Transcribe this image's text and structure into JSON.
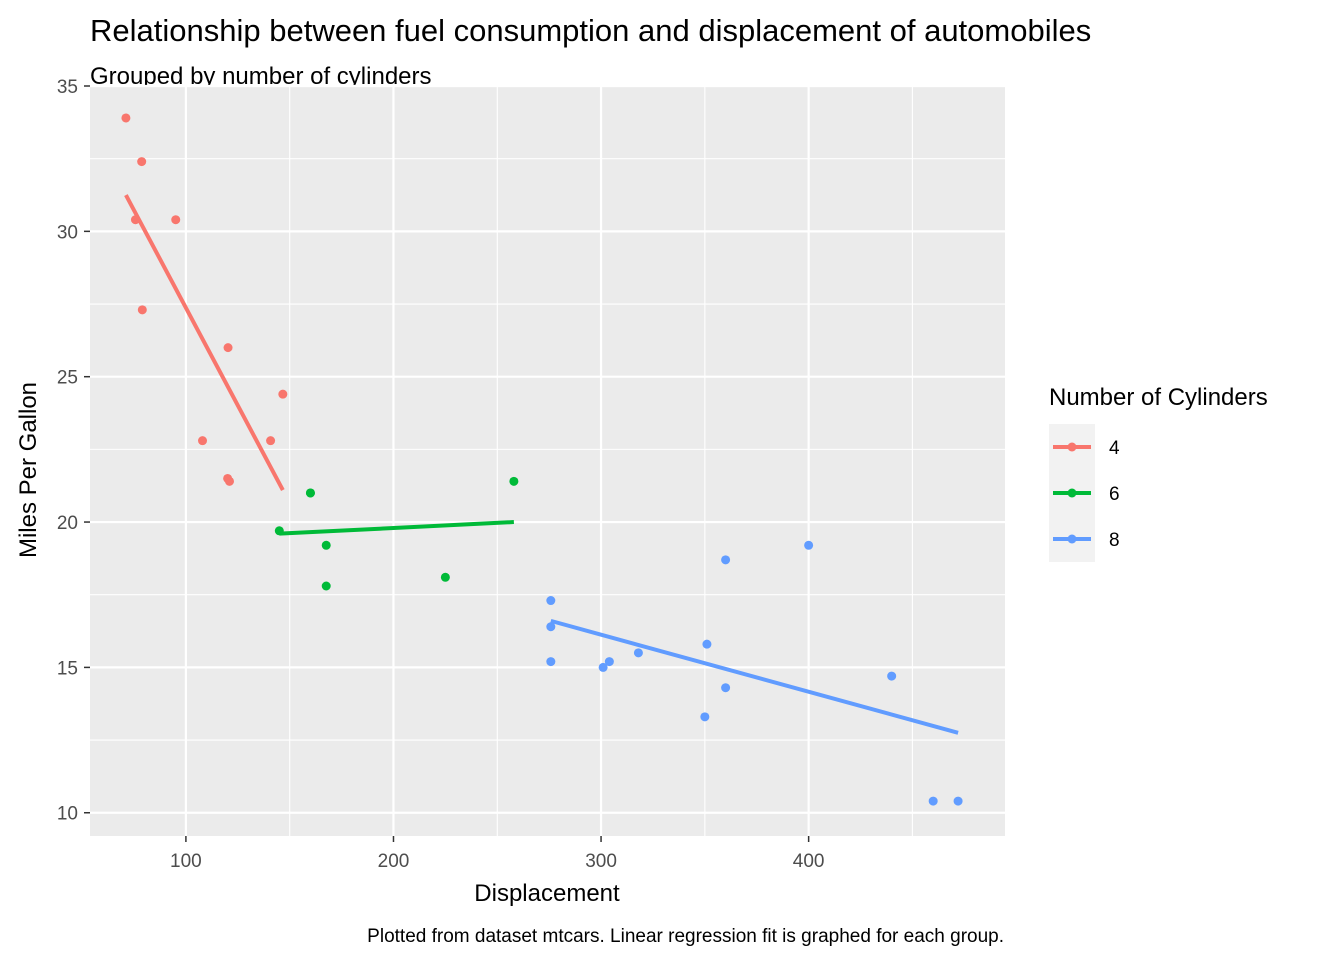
{
  "chart_data": {
    "type": "scatter",
    "title": "Relationship between fuel consumption and displacement of automobiles",
    "subtitle": "Grouped by number of cylinders",
    "xlabel": "Displacement",
    "ylabel": "Miles Per Gallon",
    "caption": "Plotted from dataset mtcars. Linear regression fit is graphed for each group.",
    "xlim": [
      53.8,
      494.6
    ],
    "ylim": [
      9.2,
      35.0
    ],
    "xticks": [
      100,
      200,
      300,
      400
    ],
    "yticks": [
      10,
      15,
      20,
      25,
      30,
      35
    ],
    "grid": true,
    "legend": {
      "title": "Number of Cylinders",
      "position": "right"
    },
    "series": [
      {
        "name": "4",
        "color": "#F8766D",
        "points": [
          [
            71.1,
            33.9
          ],
          [
            78.7,
            32.4
          ],
          [
            75.7,
            30.4
          ],
          [
            95.1,
            30.4
          ],
          [
            79.0,
            27.3
          ],
          [
            120.3,
            26.0
          ],
          [
            146.7,
            24.4
          ],
          [
            108.0,
            22.8
          ],
          [
            140.8,
            22.8
          ],
          [
            120.1,
            21.5
          ],
          [
            121.0,
            21.4
          ]
        ],
        "fit": [
          [
            71.1,
            31.25
          ],
          [
            146.7,
            21.1
          ]
        ]
      },
      {
        "name": "6",
        "color": "#00BA38",
        "points": [
          [
            160.0,
            21.0
          ],
          [
            160.0,
            21.0
          ],
          [
            258.0,
            21.4
          ],
          [
            145.0,
            19.7
          ],
          [
            167.6,
            19.2
          ],
          [
            167.6,
            17.8
          ],
          [
            225.0,
            18.1
          ]
        ],
        "fit": [
          [
            145.0,
            19.6
          ],
          [
            258.0,
            20.0
          ]
        ]
      },
      {
        "name": "8",
        "color": "#619CFF",
        "points": [
          [
            400.0,
            19.2
          ],
          [
            360.0,
            18.7
          ],
          [
            275.8,
            17.3
          ],
          [
            275.8,
            16.4
          ],
          [
            351.0,
            15.8
          ],
          [
            318.0,
            15.5
          ],
          [
            304.0,
            15.2
          ],
          [
            275.8,
            15.2
          ],
          [
            301.0,
            15.0
          ],
          [
            440.0,
            14.7
          ],
          [
            360.0,
            14.3
          ],
          [
            350.0,
            13.3
          ],
          [
            460.0,
            10.4
          ],
          [
            472.0,
            10.4
          ]
        ],
        "fit": [
          [
            275.8,
            16.6
          ],
          [
            472.0,
            12.75
          ]
        ]
      }
    ]
  }
}
